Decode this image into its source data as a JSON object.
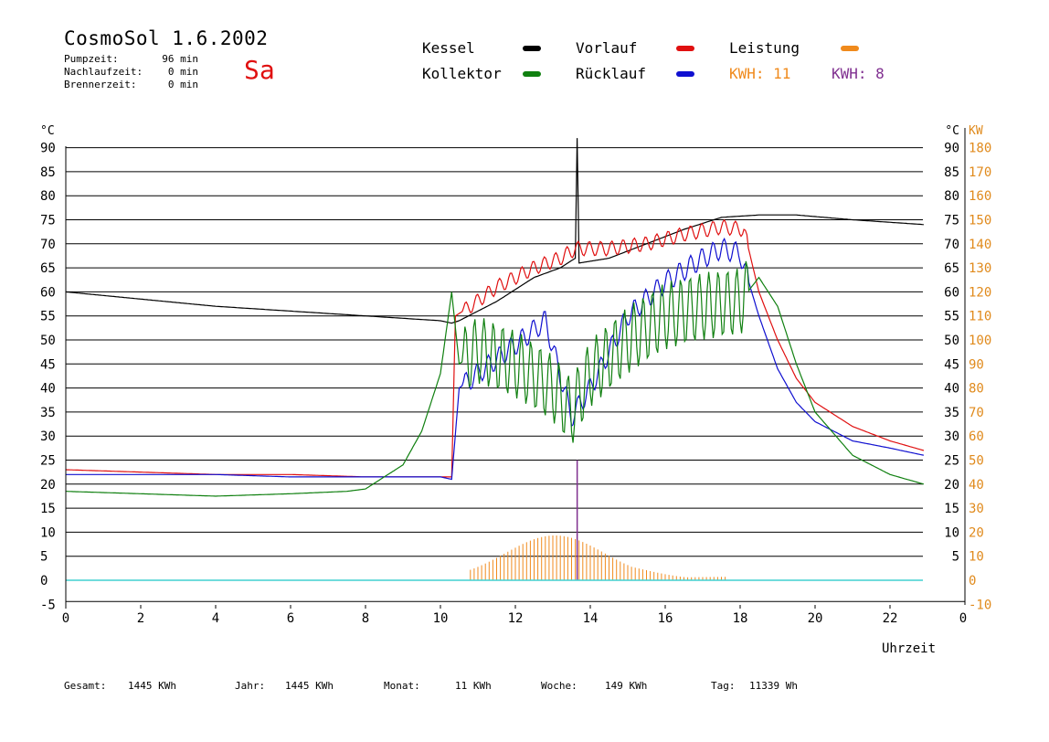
{
  "header": {
    "title": "CosmoSol 1.6.2002",
    "weekday": "Sa",
    "meta": [
      {
        "label": "Pumpzeit:",
        "value": "96 min"
      },
      {
        "label": "Nachlaufzeit:",
        "value": "0 min"
      },
      {
        "label": "Brennerzeit:",
        "value": "0 min"
      }
    ]
  },
  "legend": {
    "kessel": {
      "label": "Kessel",
      "color": "#000000"
    },
    "vorlauf": {
      "label": "Vorlauf",
      "color": "#e01010"
    },
    "leistung": {
      "label": "Leistung",
      "color": "#f08a1c"
    },
    "kollektor": {
      "label": "Kollektor",
      "color": "#108010"
    },
    "ruecklauf": {
      "label": "Rücklauf",
      "color": "#1010d0"
    },
    "kwh1": {
      "label": "KWH: 11",
      "color": "#f08a1c"
    },
    "kwh2": {
      "label": "KWH: 8",
      "color": "#803090"
    }
  },
  "footer": [
    {
      "label": "Gesamt:",
      "value": "1445 KWh"
    },
    {
      "label": "Jahr:",
      "value": "1445 KWh"
    },
    {
      "label": "Monat:",
      "value": "11 KWh"
    },
    {
      "label": "Woche:",
      "value": "149 KWh"
    },
    {
      "label": "Tag:",
      "value": "11339 Wh"
    }
  ],
  "chart_data": {
    "type": "line",
    "xlabel": "Uhrzeit",
    "ylabel": "°C",
    "ylabel_right": "KW",
    "xlim": [
      0,
      24
    ],
    "ylim": [
      -5,
      92
    ],
    "ylim_right": [
      -10,
      184
    ],
    "x_ticks": [
      0,
      2,
      4,
      6,
      8,
      10,
      12,
      14,
      16,
      18,
      20,
      22
    ],
    "x_tick_end_label": "0",
    "y_ticks": [
      -5,
      0,
      5,
      10,
      15,
      20,
      25,
      30,
      35,
      40,
      45,
      50,
      55,
      60,
      65,
      70,
      75,
      80,
      85,
      90
    ],
    "y_right_ticks": [
      5,
      10,
      15,
      20,
      25,
      30,
      35,
      40,
      45,
      50,
      55,
      60,
      65,
      70,
      75,
      80,
      85,
      90
    ],
    "y_right_kw_ticks": [
      -10,
      0,
      10,
      20,
      30,
      40,
      50,
      60,
      70,
      80,
      90,
      100,
      110,
      120,
      130,
      140,
      150,
      160,
      170,
      180
    ],
    "grid": true,
    "colors": {
      "kessel": "#000000",
      "vorlauf": "#e01010",
      "kollektor": "#108010",
      "ruecklauf": "#1010d0",
      "leistung": "#f08a1c",
      "leistung2": "#803090",
      "baseline": "#40d0d0",
      "kw_axis": "#e08a1c"
    },
    "series": [
      {
        "key": "kessel",
        "x": [
          0,
          2,
          4,
          6,
          8,
          10,
          10.3,
          10.5,
          11.5,
          12.5,
          13.2,
          13.6,
          13.65,
          13.7,
          14.5,
          15.5,
          16.5,
          17.5,
          18.5,
          19.5,
          21,
          22.9
        ],
        "y": [
          60,
          58.5,
          57,
          56,
          55,
          54,
          53.5,
          54,
          58,
          63,
          65,
          67,
          92,
          66,
          67,
          70,
          73,
          75.5,
          76,
          76,
          75,
          74
        ]
      },
      {
        "key": "vorlauf",
        "x": [
          0,
          2,
          4,
          6,
          8,
          10,
          10.3,
          10.4,
          10.8,
          11.5,
          12.5,
          13.2,
          13.6,
          14.5,
          15.5,
          16.5,
          17.5,
          18.1,
          18.5,
          19,
          19.5,
          20,
          21,
          22,
          22.9
        ],
        "y": [
          23,
          22.5,
          22,
          22,
          21.5,
          21.5,
          21.5,
          55,
          57,
          61,
          65,
          67,
          69,
          69,
          70,
          72,
          73.5,
          73,
          60,
          50,
          42,
          37,
          32,
          29,
          27
        ]
      },
      {
        "key": "ruecklauf",
        "x": [
          0,
          2,
          4,
          6,
          8,
          10,
          10.3,
          10.5,
          11,
          12,
          12.8,
          13.5,
          14,
          15,
          16,
          17,
          17.5,
          18,
          18.5,
          19,
          19.5,
          20,
          21,
          22,
          22.9
        ],
        "y": [
          22,
          22,
          22,
          21.5,
          21.5,
          21.5,
          21,
          40,
          43,
          49,
          54,
          34,
          40,
          55,
          62,
          67,
          69,
          68,
          55,
          44,
          37,
          33,
          29,
          27.5,
          26
        ]
      },
      {
        "key": "kollektor",
        "x": [
          0,
          2,
          4,
          6,
          7.5,
          8,
          9,
          9.5,
          10,
          10.3,
          10.5,
          11,
          12,
          13,
          13.5,
          14,
          15,
          16,
          17,
          18,
          18.5,
          19,
          19.5,
          20,
          21,
          22,
          22.9
        ],
        "y": [
          18.5,
          18,
          17.5,
          18,
          18.5,
          19,
          24,
          31,
          43,
          60,
          45,
          48,
          45,
          40,
          35,
          43,
          50,
          55,
          57,
          58,
          63,
          57,
          45,
          35,
          26,
          22,
          20
        ]
      }
    ],
    "leistung": {
      "start_x": 10.8,
      "end_x": 17.7,
      "peak_x": 13.3,
      "peak_kw": 21,
      "spike_x": 13.65,
      "spike_kw": 50
    }
  }
}
